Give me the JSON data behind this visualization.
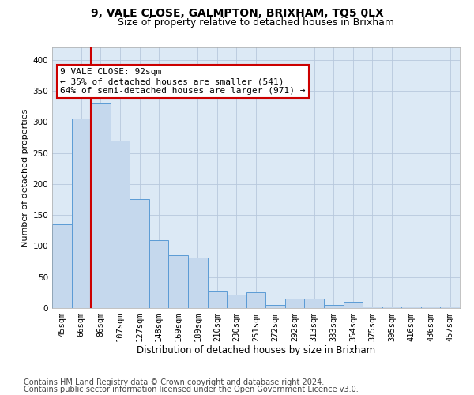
{
  "title1": "9, VALE CLOSE, GALMPTON, BRIXHAM, TQ5 0LX",
  "title2": "Size of property relative to detached houses in Brixham",
  "xlabel": "Distribution of detached houses by size in Brixham",
  "ylabel": "Number of detached properties",
  "categories": [
    "45sqm",
    "66sqm",
    "86sqm",
    "107sqm",
    "127sqm",
    "148sqm",
    "169sqm",
    "189sqm",
    "210sqm",
    "230sqm",
    "251sqm",
    "272sqm",
    "292sqm",
    "313sqm",
    "333sqm",
    "354sqm",
    "375sqm",
    "395sqm",
    "416sqm",
    "436sqm",
    "457sqm"
  ],
  "values": [
    135,
    305,
    330,
    270,
    175,
    110,
    85,
    82,
    28,
    22,
    25,
    5,
    15,
    15,
    5,
    10,
    3,
    3,
    3,
    3,
    3
  ],
  "bar_color": "#c5d8ed",
  "bar_edge_color": "#5b9bd5",
  "vline_x": 1.5,
  "annotation_text": "9 VALE CLOSE: 92sqm\n← 35% of detached houses are smaller (541)\n64% of semi-detached houses are larger (971) →",
  "annotation_box_color": "#ffffff",
  "annotation_box_edge": "#cc0000",
  "vline_color": "#cc0000",
  "footer1": "Contains HM Land Registry data © Crown copyright and database right 2024.",
  "footer2": "Contains public sector information licensed under the Open Government Licence v3.0.",
  "bg_color": "#ffffff",
  "plot_bg_color": "#dce9f5",
  "grid_color": "#b8c8dc",
  "ylim": [
    0,
    420
  ],
  "title1_fontsize": 10,
  "title2_fontsize": 9,
  "xlabel_fontsize": 8.5,
  "ylabel_fontsize": 8,
  "tick_fontsize": 7.5,
  "annotation_fontsize": 8,
  "footer_fontsize": 7
}
